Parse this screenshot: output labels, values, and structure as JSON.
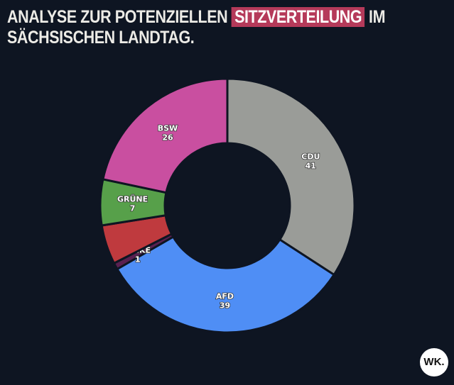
{
  "title": {
    "before": "ANALYSE ZUR POTENZIELLEN",
    "highlight": "SITZVERTEILUNG",
    "after": "IM",
    "line2": "SÄCHSISCHEN LANDTAG."
  },
  "logo": "WK.",
  "chart_data": {
    "type": "pie",
    "variant": "donut",
    "title": "Analyse zur potenziellen Sitzverteilung im sächsischen Landtag.",
    "start": "top",
    "direction": "clockwise",
    "slices": [
      {
        "label": "CDU",
        "value": 41,
        "color": "#9a9c98",
        "show_label": true
      },
      {
        "label": "AFD",
        "value": 39,
        "color": "#4f8ef5",
        "show_label": true
      },
      {
        "label": "LINKE",
        "value": 1,
        "color": "#5a2050",
        "show_label": true
      },
      {
        "label": "",
        "value": 6,
        "color": "#bf3a3e",
        "show_label": false
      },
      {
        "label": "GRÜNE",
        "value": 7,
        "color": "#57a04a",
        "show_label": true
      },
      {
        "label": "BSW",
        "value": 26,
        "color": "#c94fa0",
        "show_label": true
      }
    ]
  }
}
